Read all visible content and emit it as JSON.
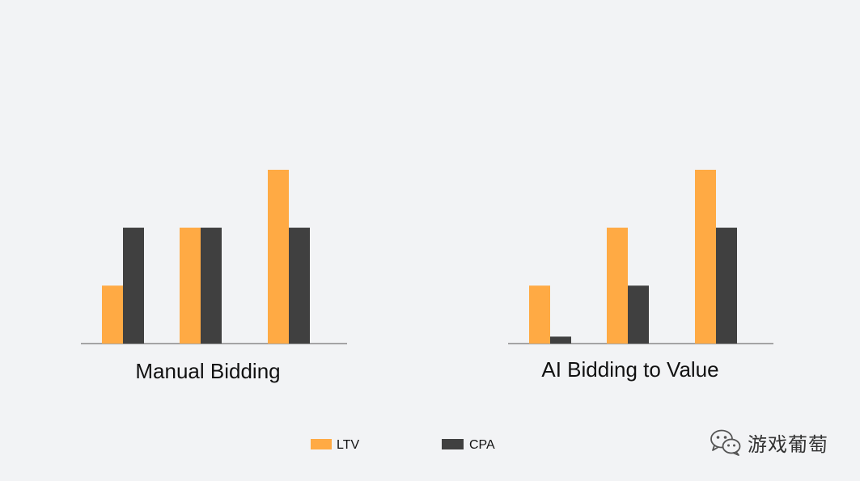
{
  "chart_data": [
    {
      "type": "bar",
      "title": "Manual Bidding",
      "categories": [
        "",
        "",
        ""
      ],
      "series": [
        {
          "name": "LTV",
          "color": "#FFAA44",
          "values": [
            1,
            2,
            3
          ]
        },
        {
          "name": "CPA",
          "color": "#404040",
          "values": [
            2,
            2,
            2
          ]
        }
      ],
      "ylim": [
        0,
        3
      ],
      "grid": false,
      "legend": "bottom"
    },
    {
      "type": "bar",
      "title": "AI Bidding to Value",
      "categories": [
        "",
        "",
        ""
      ],
      "series": [
        {
          "name": "LTV",
          "color": "#FFAA44",
          "values": [
            1,
            2,
            3
          ]
        },
        {
          "name": "CPA",
          "color": "#404040",
          "values": [
            0.12,
            1,
            2
          ]
        }
      ],
      "ylim": [
        0,
        3
      ],
      "grid": false,
      "legend": "bottom"
    }
  ],
  "legend": {
    "items": [
      {
        "label": "LTV",
        "color": "#FFAA44"
      },
      {
        "label": "CPA",
        "color": "#404040"
      }
    ]
  },
  "watermark": {
    "text": "游戏葡萄",
    "icon": "wechat-icon"
  }
}
